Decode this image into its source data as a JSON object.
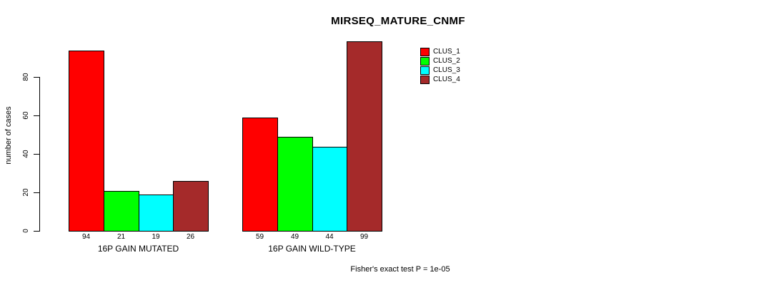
{
  "chart_data": {
    "type": "bar",
    "title": "MIRSEQ_MATURE_CNMF",
    "ylabel": "number of cases",
    "xlabel": "",
    "categories": [
      "16P GAIN MUTATED",
      "16P GAIN WILD-TYPE"
    ],
    "series": [
      {
        "name": "CLUS_1",
        "color": "#FF0000",
        "values": [
          94,
          59
        ]
      },
      {
        "name": "CLUS_2",
        "color": "#00FF00",
        "values": [
          21,
          49
        ]
      },
      {
        "name": "CLUS_3",
        "color": "#00FFFF",
        "values": [
          19,
          44
        ]
      },
      {
        "name": "CLUS_4",
        "color": "#A52A2A",
        "values": [
          26,
          99
        ]
      }
    ],
    "yticks": [
      0,
      20,
      40,
      60,
      80
    ],
    "ylim": [
      0,
      100
    ],
    "bar_value_labels": [
      [
        94,
        21,
        19,
        26
      ],
      [
        59,
        49,
        44,
        99
      ]
    ],
    "grid": false,
    "legend_position": "top-right",
    "annotation": "Fisher's exact test P = 1e-05"
  }
}
